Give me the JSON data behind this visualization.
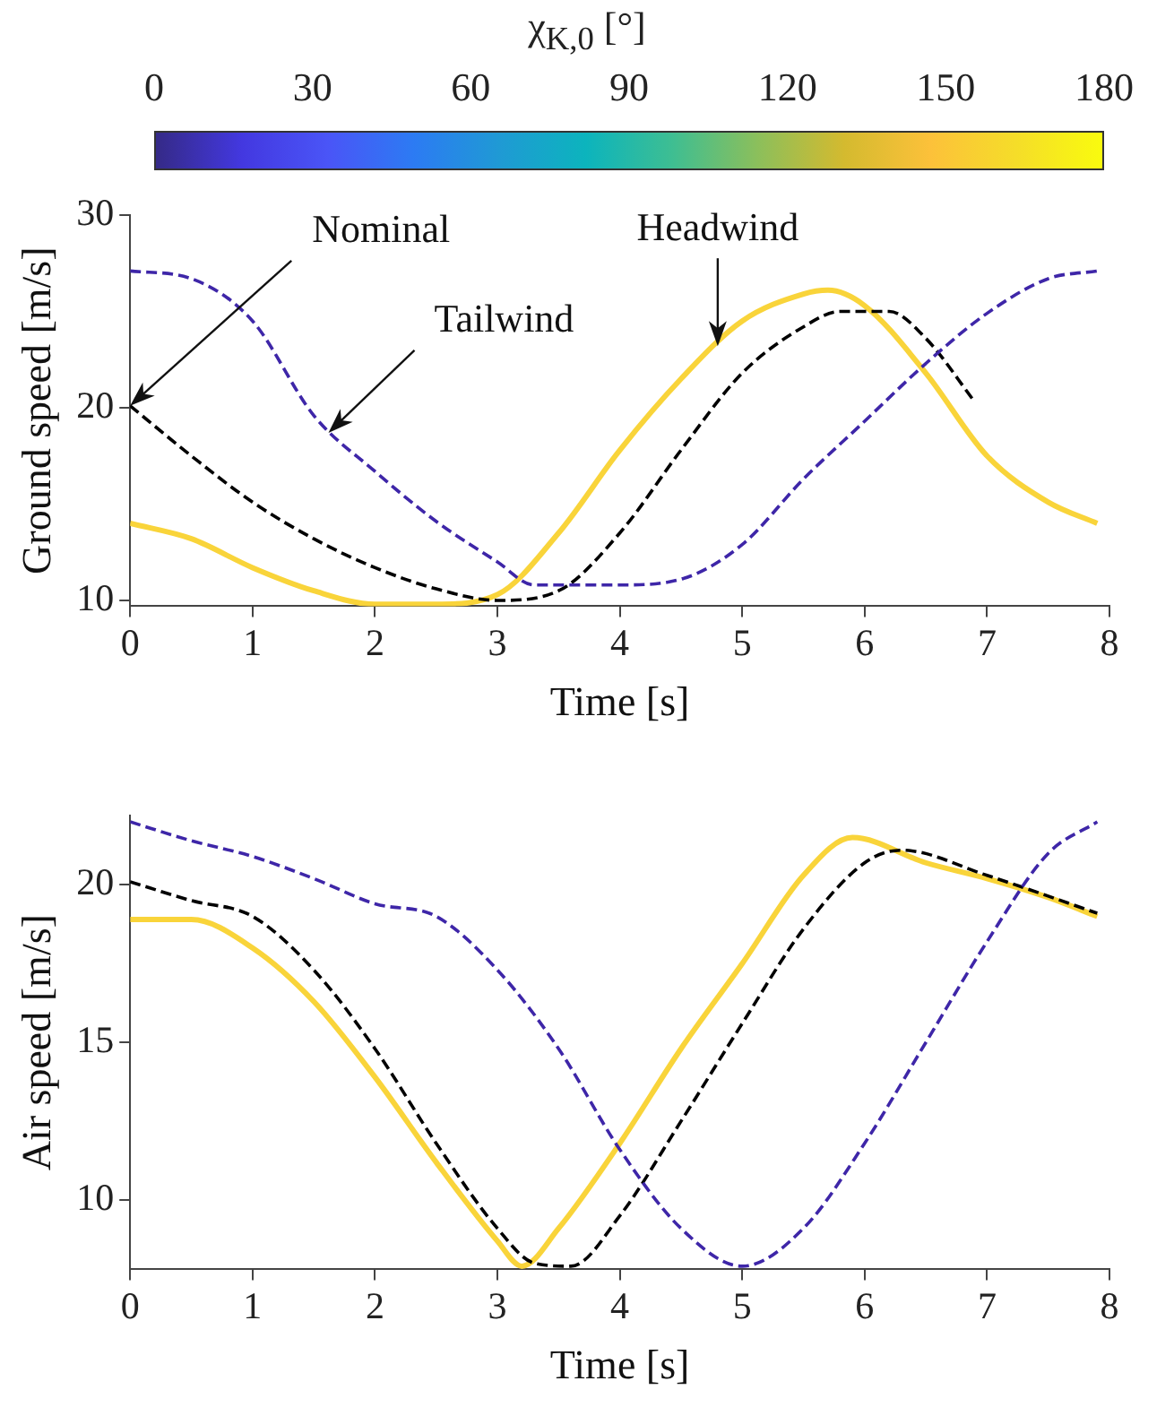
{
  "chart_data": [
    {
      "type": "line",
      "xlabel": "Time [s]",
      "ylabel": "Ground speed [m/s]",
      "clabel": "χ$_{K,0}$ [°]",
      "clim": [
        0,
        180
      ],
      "cticks": [
        0,
        30,
        60,
        90,
        120,
        150,
        180
      ],
      "xlim": [
        0,
        8
      ],
      "xticks": [
        0,
        1,
        2,
        3,
        4,
        5,
        6,
        7,
        8
      ],
      "ylim": [
        9.7,
        30
      ],
      "yticks": [
        10,
        20,
        30
      ],
      "grid": false,
      "legend": false,
      "annotations": [
        {
          "text": "Nominal",
          "x": 0,
          "y": 20.1
        },
        {
          "text": "Tailwind",
          "x": 1.62,
          "y": 18.7
        },
        {
          "text": "Headwind",
          "x": 4.8,
          "y": 23.2
        }
      ],
      "series": [
        {
          "color": "#3e26a8",
          "line_style": "dashed",
          "x": [
            0,
            0.5,
            1,
            1.5,
            2,
            2.5,
            3,
            3.3,
            4,
            4.5,
            5,
            5.5,
            6,
            6.5,
            7,
            7.5,
            7.9
          ],
          "values": [
            27.1,
            26.7,
            24.5,
            19.6,
            16.7,
            14.1,
            12,
            10.8,
            10.8,
            11.1,
            12.9,
            16.3,
            19.3,
            22.3,
            24.9,
            26.7,
            27.1
          ]
        },
        {
          "color": "#000000",
          "line_style": "dashed",
          "x": [
            0,
            0.5,
            1,
            1.5,
            2,
            2.5,
            3,
            3.5,
            4,
            4.5,
            5,
            5.5,
            5.8,
            6.2,
            6.5,
            6.9
          ],
          "values": [
            20.1,
            17.5,
            15.1,
            13.2,
            11.7,
            10.6,
            10,
            10.5,
            13.5,
            17.8,
            21.8,
            24.2,
            25,
            25,
            23.6,
            20.3
          ]
        },
        {
          "color": "#f9d43a",
          "line_style": "solid",
          "x": [
            0,
            0.5,
            1,
            1.5,
            2,
            2.5,
            3,
            3.5,
            4,
            4.5,
            5,
            5.5,
            5.7,
            6,
            6.5,
            7,
            7.5,
            7.9
          ],
          "values": [
            14,
            13.2,
            11.7,
            10.5,
            9.8,
            9.8,
            10.3,
            13.5,
            17.8,
            21.5,
            24.5,
            25.9,
            26.1,
            25.3,
            21.8,
            17.5,
            15.1,
            14
          ]
        }
      ]
    },
    {
      "type": "line",
      "xlabel": "Time [s]",
      "ylabel": "Air speed [m/s]",
      "xlim": [
        0,
        8
      ],
      "xticks": [
        0,
        1,
        2,
        3,
        4,
        5,
        6,
        7,
        8
      ],
      "ylim": [
        7.8,
        22.2
      ],
      "yticks": [
        10,
        15,
        20
      ],
      "grid": false,
      "legend": false,
      "series": [
        {
          "color": "#3e26a8",
          "line_style": "dashed",
          "x": [
            0,
            0.5,
            1,
            1.5,
            2,
            2.5,
            3,
            3.5,
            4,
            4.5,
            5,
            5.5,
            6,
            6.5,
            7,
            7.5,
            7.9
          ],
          "values": [
            22,
            21.4,
            20.9,
            20.2,
            19.4,
            19,
            17.3,
            14.8,
            11.6,
            9.1,
            7.9,
            9.1,
            11.8,
            15,
            18.2,
            21,
            22
          ]
        },
        {
          "color": "#000000",
          "line_style": "dashed",
          "x": [
            0,
            0.5,
            1,
            1.5,
            2,
            2.5,
            3,
            3.3,
            3.6,
            4,
            4.5,
            5,
            5.5,
            6,
            6.3,
            7,
            7.9
          ],
          "values": [
            20.1,
            19.5,
            19,
            17.3,
            14.8,
            11.8,
            9.1,
            8,
            7.9,
            9.5,
            12.5,
            15.6,
            18.6,
            20.7,
            21.1,
            20.3,
            19.1
          ]
        },
        {
          "color": "#f9d43a",
          "line_style": "solid",
          "x": [
            0,
            0.5,
            1,
            1.5,
            2,
            2.5,
            3,
            3.2,
            3.5,
            4,
            4.5,
            5,
            5.5,
            5.9,
            6.5,
            7,
            7.5,
            7.9
          ],
          "values": [
            18.9,
            18.9,
            18,
            16.3,
            13.9,
            11.2,
            8.7,
            7.9,
            9.1,
            11.8,
            14.8,
            17.5,
            20.3,
            21.5,
            20.7,
            20.2,
            19.6,
            19
          ]
        }
      ]
    }
  ]
}
